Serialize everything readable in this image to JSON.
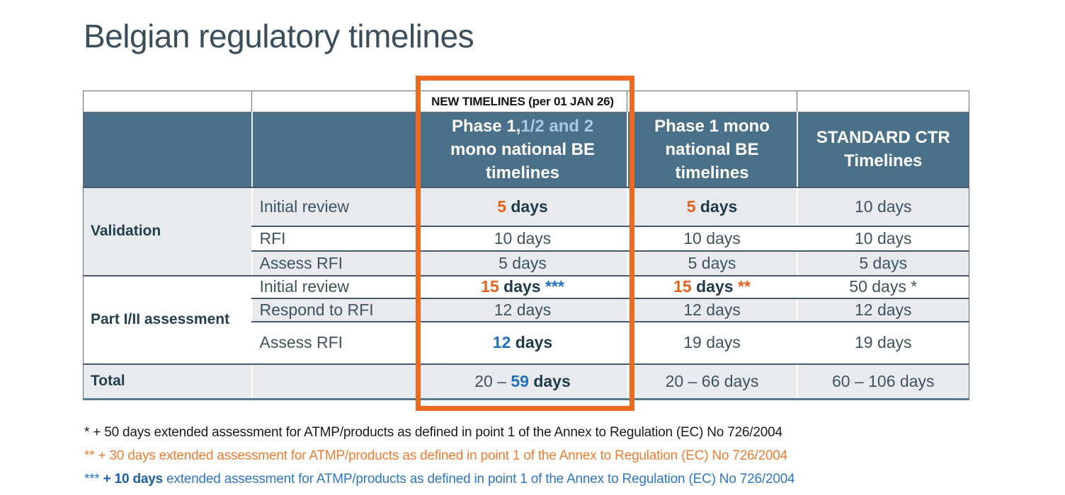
{
  "title": "Belgian regulatory timelines",
  "table": {
    "banner": "NEW TIMELINES (per 01 JAN 26)",
    "headers": {
      "phase_combined": [
        {
          "t": "Phase 1,",
          "k": "w"
        },
        {
          "t": "1/2 and 2",
          "k": "lb"
        },
        {
          "t": " mono national BE timelines",
          "k": "w"
        }
      ],
      "phase1_mono": "Phase 1 mono national BE timelines",
      "standard_ctr": "STANDARD CTR Timelines"
    },
    "sections": [
      {
        "label": "Validation",
        "rows": [
          {
            "sub": "Initial review",
            "cells": [
              [
                {
                  "t": "5",
                  "k": "o"
                },
                {
                  "t": " days",
                  "k": "b"
                }
              ],
              [
                {
                  "t": "5",
                  "k": "o"
                },
                {
                  "t": " days",
                  "k": "b"
                }
              ],
              [
                {
                  "t": "10 days",
                  "k": "p"
                }
              ]
            ]
          },
          {
            "sub": "RFI",
            "cells": [
              [
                {
                  "t": "10 days",
                  "k": "p"
                }
              ],
              [
                {
                  "t": "10 days",
                  "k": "p"
                }
              ],
              [
                {
                  "t": "10 days",
                  "k": "p"
                }
              ]
            ]
          },
          {
            "sub": "Assess RFI",
            "cells": [
              [
                {
                  "t": "5 days",
                  "k": "p"
                }
              ],
              [
                {
                  "t": "5 days",
                  "k": "p"
                }
              ],
              [
                {
                  "t": "5 days",
                  "k": "p"
                }
              ]
            ]
          }
        ]
      },
      {
        "label": "Part I/II assessment",
        "rows": [
          {
            "sub": "Initial review",
            "cells": [
              [
                {
                  "t": "15",
                  "k": "o"
                },
                {
                  "t": " days ",
                  "k": "b"
                },
                {
                  "t": "***",
                  "k": "u"
                }
              ],
              [
                {
                  "t": "15",
                  "k": "o"
                },
                {
                  "t": " days ",
                  "k": "b"
                },
                {
                  "t": "**",
                  "k": "o"
                }
              ],
              [
                {
                  "t": "50 days *",
                  "k": "p"
                }
              ]
            ]
          },
          {
            "sub": "Respond to RFI",
            "cells": [
              [
                {
                  "t": "12 days",
                  "k": "p"
                }
              ],
              [
                {
                  "t": "12 days",
                  "k": "p"
                }
              ],
              [
                {
                  "t": "12 days",
                  "k": "p"
                }
              ]
            ]
          },
          {
            "sub": "Assess RFI",
            "cells": [
              [
                {
                  "t": "12",
                  "k": "u"
                },
                {
                  "t": " days",
                  "k": "b"
                }
              ],
              [
                {
                  "t": "19 days",
                  "k": "p"
                }
              ],
              [
                {
                  "t": "19 days",
                  "k": "p"
                }
              ]
            ]
          }
        ]
      }
    ],
    "total": {
      "label": "Total",
      "cells": [
        [
          {
            "t": "20 – ",
            "k": "p"
          },
          {
            "t": "59",
            "k": "u"
          },
          {
            "t": " days",
            "k": "b"
          }
        ],
        [
          {
            "t": "20 – 66 days",
            "k": "p"
          }
        ],
        [
          {
            "t": "60 – 106 days",
            "k": "p"
          }
        ]
      ]
    }
  },
  "footnotes": [
    [
      {
        "t": "* + 50 days extended assessment for ATMP/products as defined in point 1 of the Annex to Regulation (EC) No 726/2004",
        "k": "fn-black"
      }
    ],
    [
      {
        "t": "** + 30 days extended assessment for ATMP/products as defined in point 1 of the Annex to Regulation (EC) No 726/2004",
        "k": "fn-orange"
      }
    ],
    [
      {
        "t": "*** ",
        "k": "fn-blue"
      },
      {
        "t": "+ 10 days",
        "k": "fn-blue-bold"
      },
      {
        "t": " extended assessment for ATMP/products as defined in point 1 of the Annex to Regulation (EC) No 726/2004",
        "k": "fn-blue"
      }
    ]
  ],
  "colors": {
    "accent_orange": "#E8611A",
    "accent_blue": "#1F6FC4",
    "header_bg": "#4A7189",
    "header_lightblue": "#A9C7E8",
    "highlight_border": "#ED6B1E",
    "row_alt_bg": "#E9EAEE"
  }
}
